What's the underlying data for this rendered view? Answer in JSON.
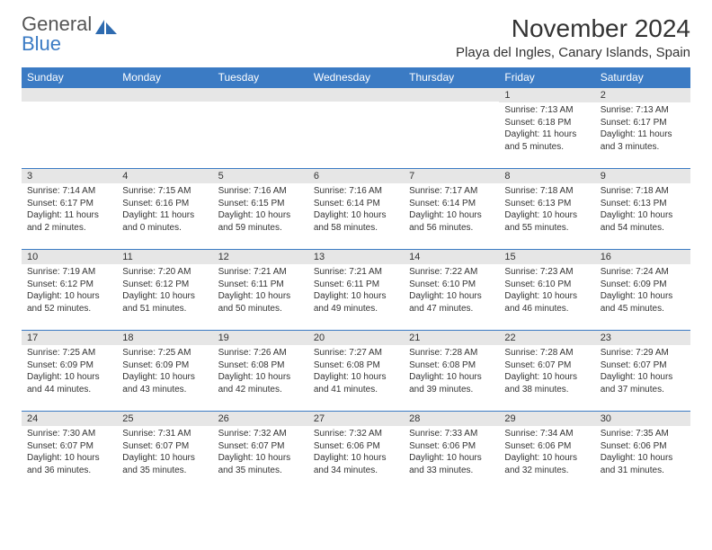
{
  "brand": {
    "word1": "General",
    "word2": "Blue"
  },
  "title": "November 2024",
  "location": "Playa del Ingles, Canary Islands, Spain",
  "colors": {
    "accent": "#3b7bc4",
    "dayHeaderBg": "#e6e6e6"
  },
  "weekdays": [
    "Sunday",
    "Monday",
    "Tuesday",
    "Wednesday",
    "Thursday",
    "Friday",
    "Saturday"
  ],
  "weeks": [
    [
      {
        "n": "",
        "sr": "",
        "ss": "",
        "dl1": "",
        "dl2": ""
      },
      {
        "n": "",
        "sr": "",
        "ss": "",
        "dl1": "",
        "dl2": ""
      },
      {
        "n": "",
        "sr": "",
        "ss": "",
        "dl1": "",
        "dl2": ""
      },
      {
        "n": "",
        "sr": "",
        "ss": "",
        "dl1": "",
        "dl2": ""
      },
      {
        "n": "",
        "sr": "",
        "ss": "",
        "dl1": "",
        "dl2": ""
      },
      {
        "n": "1",
        "sr": "Sunrise: 7:13 AM",
        "ss": "Sunset: 6:18 PM",
        "dl1": "Daylight: 11 hours",
        "dl2": "and 5 minutes."
      },
      {
        "n": "2",
        "sr": "Sunrise: 7:13 AM",
        "ss": "Sunset: 6:17 PM",
        "dl1": "Daylight: 11 hours",
        "dl2": "and 3 minutes."
      }
    ],
    [
      {
        "n": "3",
        "sr": "Sunrise: 7:14 AM",
        "ss": "Sunset: 6:17 PM",
        "dl1": "Daylight: 11 hours",
        "dl2": "and 2 minutes."
      },
      {
        "n": "4",
        "sr": "Sunrise: 7:15 AM",
        "ss": "Sunset: 6:16 PM",
        "dl1": "Daylight: 11 hours",
        "dl2": "and 0 minutes."
      },
      {
        "n": "5",
        "sr": "Sunrise: 7:16 AM",
        "ss": "Sunset: 6:15 PM",
        "dl1": "Daylight: 10 hours",
        "dl2": "and 59 minutes."
      },
      {
        "n": "6",
        "sr": "Sunrise: 7:16 AM",
        "ss": "Sunset: 6:14 PM",
        "dl1": "Daylight: 10 hours",
        "dl2": "and 58 minutes."
      },
      {
        "n": "7",
        "sr": "Sunrise: 7:17 AM",
        "ss": "Sunset: 6:14 PM",
        "dl1": "Daylight: 10 hours",
        "dl2": "and 56 minutes."
      },
      {
        "n": "8",
        "sr": "Sunrise: 7:18 AM",
        "ss": "Sunset: 6:13 PM",
        "dl1": "Daylight: 10 hours",
        "dl2": "and 55 minutes."
      },
      {
        "n": "9",
        "sr": "Sunrise: 7:18 AM",
        "ss": "Sunset: 6:13 PM",
        "dl1": "Daylight: 10 hours",
        "dl2": "and 54 minutes."
      }
    ],
    [
      {
        "n": "10",
        "sr": "Sunrise: 7:19 AM",
        "ss": "Sunset: 6:12 PM",
        "dl1": "Daylight: 10 hours",
        "dl2": "and 52 minutes."
      },
      {
        "n": "11",
        "sr": "Sunrise: 7:20 AM",
        "ss": "Sunset: 6:12 PM",
        "dl1": "Daylight: 10 hours",
        "dl2": "and 51 minutes."
      },
      {
        "n": "12",
        "sr": "Sunrise: 7:21 AM",
        "ss": "Sunset: 6:11 PM",
        "dl1": "Daylight: 10 hours",
        "dl2": "and 50 minutes."
      },
      {
        "n": "13",
        "sr": "Sunrise: 7:21 AM",
        "ss": "Sunset: 6:11 PM",
        "dl1": "Daylight: 10 hours",
        "dl2": "and 49 minutes."
      },
      {
        "n": "14",
        "sr": "Sunrise: 7:22 AM",
        "ss": "Sunset: 6:10 PM",
        "dl1": "Daylight: 10 hours",
        "dl2": "and 47 minutes."
      },
      {
        "n": "15",
        "sr": "Sunrise: 7:23 AM",
        "ss": "Sunset: 6:10 PM",
        "dl1": "Daylight: 10 hours",
        "dl2": "and 46 minutes."
      },
      {
        "n": "16",
        "sr": "Sunrise: 7:24 AM",
        "ss": "Sunset: 6:09 PM",
        "dl1": "Daylight: 10 hours",
        "dl2": "and 45 minutes."
      }
    ],
    [
      {
        "n": "17",
        "sr": "Sunrise: 7:25 AM",
        "ss": "Sunset: 6:09 PM",
        "dl1": "Daylight: 10 hours",
        "dl2": "and 44 minutes."
      },
      {
        "n": "18",
        "sr": "Sunrise: 7:25 AM",
        "ss": "Sunset: 6:09 PM",
        "dl1": "Daylight: 10 hours",
        "dl2": "and 43 minutes."
      },
      {
        "n": "19",
        "sr": "Sunrise: 7:26 AM",
        "ss": "Sunset: 6:08 PM",
        "dl1": "Daylight: 10 hours",
        "dl2": "and 42 minutes."
      },
      {
        "n": "20",
        "sr": "Sunrise: 7:27 AM",
        "ss": "Sunset: 6:08 PM",
        "dl1": "Daylight: 10 hours",
        "dl2": "and 41 minutes."
      },
      {
        "n": "21",
        "sr": "Sunrise: 7:28 AM",
        "ss": "Sunset: 6:08 PM",
        "dl1": "Daylight: 10 hours",
        "dl2": "and 39 minutes."
      },
      {
        "n": "22",
        "sr": "Sunrise: 7:28 AM",
        "ss": "Sunset: 6:07 PM",
        "dl1": "Daylight: 10 hours",
        "dl2": "and 38 minutes."
      },
      {
        "n": "23",
        "sr": "Sunrise: 7:29 AM",
        "ss": "Sunset: 6:07 PM",
        "dl1": "Daylight: 10 hours",
        "dl2": "and 37 minutes."
      }
    ],
    [
      {
        "n": "24",
        "sr": "Sunrise: 7:30 AM",
        "ss": "Sunset: 6:07 PM",
        "dl1": "Daylight: 10 hours",
        "dl2": "and 36 minutes."
      },
      {
        "n": "25",
        "sr": "Sunrise: 7:31 AM",
        "ss": "Sunset: 6:07 PM",
        "dl1": "Daylight: 10 hours",
        "dl2": "and 35 minutes."
      },
      {
        "n": "26",
        "sr": "Sunrise: 7:32 AM",
        "ss": "Sunset: 6:07 PM",
        "dl1": "Daylight: 10 hours",
        "dl2": "and 35 minutes."
      },
      {
        "n": "27",
        "sr": "Sunrise: 7:32 AM",
        "ss": "Sunset: 6:06 PM",
        "dl1": "Daylight: 10 hours",
        "dl2": "and 34 minutes."
      },
      {
        "n": "28",
        "sr": "Sunrise: 7:33 AM",
        "ss": "Sunset: 6:06 PM",
        "dl1": "Daylight: 10 hours",
        "dl2": "and 33 minutes."
      },
      {
        "n": "29",
        "sr": "Sunrise: 7:34 AM",
        "ss": "Sunset: 6:06 PM",
        "dl1": "Daylight: 10 hours",
        "dl2": "and 32 minutes."
      },
      {
        "n": "30",
        "sr": "Sunrise: 7:35 AM",
        "ss": "Sunset: 6:06 PM",
        "dl1": "Daylight: 10 hours",
        "dl2": "and 31 minutes."
      }
    ]
  ]
}
